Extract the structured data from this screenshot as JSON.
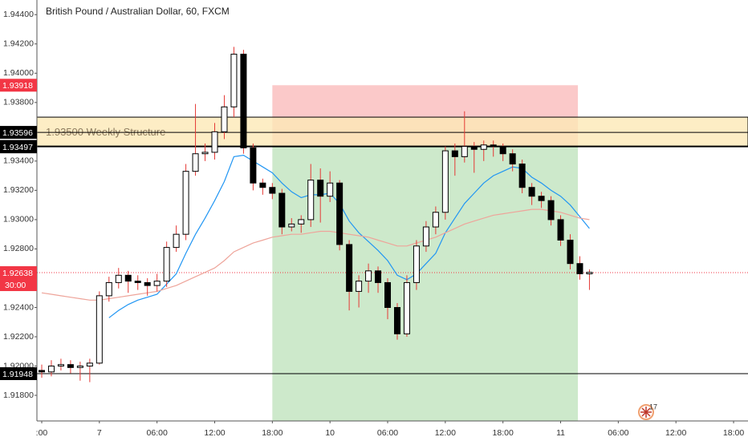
{
  "chart_data": {
    "type": "candlestick",
    "title": "British Pound / Australian Dollar, 60, FXCM",
    "badge": "17",
    "grid": false,
    "x": [
      0,
      1,
      2,
      3,
      4,
      5,
      6,
      7,
      8,
      9,
      10,
      11,
      12,
      13,
      14,
      15,
      16,
      17,
      18,
      19,
      20,
      21,
      22,
      23,
      24,
      25,
      26,
      27,
      28,
      29,
      30,
      31,
      32,
      33,
      34,
      35,
      36,
      37,
      38,
      39,
      40,
      41,
      42,
      43,
      44,
      45,
      46,
      47,
      48,
      49,
      50,
      51,
      52,
      53,
      54,
      55,
      56,
      57
    ],
    "open": [
      1.9197,
      1.9196,
      1.92,
      1.9201,
      1.9199,
      1.92,
      1.9202,
      1.9248,
      1.9257,
      1.9262,
      1.9258,
      1.9257,
      1.9255,
      1.9258,
      1.9281,
      1.929,
      1.9333,
      1.9345,
      1.9346,
      1.936,
      1.9377,
      1.9413,
      1.9349,
      1.9325,
      1.9322,
      1.9318,
      1.9295,
      1.9297,
      1.93,
      1.9327,
      1.9316,
      1.9325,
      1.9283,
      1.9251,
      1.9258,
      1.9265,
      1.9257,
      1.924,
      1.9222,
      1.9257,
      1.9282,
      1.9295,
      1.9305,
      1.9347,
      1.9343,
      1.935,
      1.9348,
      1.9351,
      1.935,
      1.9345,
      1.9338,
      1.9322,
      1.9316,
      1.9313,
      1.93,
      1.9286,
      1.927,
      1.9263
    ],
    "high": [
      1.9201,
      1.9204,
      1.9205,
      1.9204,
      1.9203,
      1.9205,
      1.9251,
      1.9261,
      1.9267,
      1.9265,
      1.9262,
      1.926,
      1.9263,
      1.9285,
      1.9296,
      1.9338,
      1.9379,
      1.9352,
      1.9366,
      1.9385,
      1.9418,
      1.9416,
      1.9352,
      1.9328,
      1.9325,
      1.9321,
      1.9301,
      1.9303,
      1.9338,
      1.9335,
      1.9333,
      1.9327,
      1.9286,
      1.9262,
      1.927,
      1.9268,
      1.926,
      1.9243,
      1.9262,
      1.9286,
      1.9299,
      1.9309,
      1.935,
      1.9352,
      1.9374,
      1.9353,
      1.9354,
      1.9354,
      1.9352,
      1.9348,
      1.9341,
      1.9325,
      1.9319,
      1.9316,
      1.9303,
      1.929,
      1.9275,
      1.9266
    ],
    "low": [
      1.9192,
      1.9193,
      1.9197,
      1.9195,
      1.919,
      1.9189,
      1.9201,
      1.9244,
      1.9253,
      1.925,
      1.9252,
      1.9248,
      1.9251,
      1.9254,
      1.9278,
      1.9286,
      1.933,
      1.934,
      1.9341,
      1.9355,
      1.937,
      1.9345,
      1.932,
      1.9317,
      1.9314,
      1.929,
      1.9292,
      1.9291,
      1.9295,
      1.9298,
      1.9312,
      1.9279,
      1.9238,
      1.924,
      1.925,
      1.925,
      1.9232,
      1.9218,
      1.922,
      1.9252,
      1.9278,
      1.929,
      1.93,
      1.933,
      1.9339,
      1.9332,
      1.934,
      1.9343,
      1.934,
      1.9333,
      1.9318,
      1.931,
      1.9308,
      1.9296,
      1.9282,
      1.9266,
      1.9259,
      1.9252
    ],
    "close": [
      1.9196,
      1.92,
      1.9201,
      1.9199,
      1.92,
      1.9202,
      1.9248,
      1.9257,
      1.9262,
      1.9258,
      1.9257,
      1.9255,
      1.9258,
      1.9281,
      1.929,
      1.9333,
      1.9345,
      1.9346,
      1.936,
      1.9377,
      1.9413,
      1.9349,
      1.9325,
      1.9322,
      1.9318,
      1.9295,
      1.9297,
      1.93,
      1.9327,
      1.9316,
      1.9325,
      1.9283,
      1.9251,
      1.9258,
      1.9265,
      1.9257,
      1.924,
      1.9222,
      1.9257,
      1.9282,
      1.9295,
      1.9305,
      1.9347,
      1.9343,
      1.935,
      1.9348,
      1.9351,
      1.935,
      1.9345,
      1.9338,
      1.9322,
      1.9316,
      1.9313,
      1.93,
      1.9286,
      1.927,
      1.9263,
      1.9264
    ],
    "up_color": "#ffffff",
    "down_color": "#000000",
    "wick_color": "#e53935",
    "series": [
      {
        "color": "#2196f3",
        "values": [
          null,
          null,
          null,
          null,
          null,
          null,
          null,
          1.9233,
          1.9238,
          1.9242,
          1.9245,
          1.9247,
          1.9249,
          1.9256,
          1.9263,
          1.9277,
          1.929,
          1.9301,
          1.9313,
          1.9326,
          1.9343,
          1.9344,
          1.934,
          1.9336,
          1.9332,
          1.9325,
          1.9319,
          1.9315,
          1.9317,
          1.9317,
          1.9318,
          1.9311,
          1.9299,
          1.9291,
          1.9285,
          1.9279,
          1.9272,
          1.9262,
          1.9259,
          1.9263,
          1.927,
          1.9277,
          1.9291,
          1.9301,
          1.9311,
          1.9318,
          1.9325,
          1.933,
          1.9333,
          1.9336,
          1.9335,
          1.9329,
          1.9325,
          1.932,
          1.9316,
          1.931,
          1.9302,
          1.9294
        ]
      },
      {
        "color": "#eea49a",
        "values": [
          1.925,
          1.9249,
          1.9248,
          1.9247,
          1.9246,
          1.9245,
          1.9245,
          1.9246,
          1.9247,
          1.9248,
          1.9249,
          1.925,
          1.9251,
          1.9253,
          1.9255,
          1.9258,
          1.9261,
          1.9264,
          1.9267,
          1.9272,
          1.9278,
          1.9281,
          1.9284,
          1.9286,
          1.9288,
          1.9289,
          1.929,
          1.929,
          1.9291,
          1.9292,
          1.9292,
          1.9291,
          1.929,
          1.9289,
          1.9288,
          1.9286,
          1.9284,
          1.9282,
          1.9282,
          1.9284,
          1.9286,
          1.9288,
          1.9291,
          1.9294,
          1.9297,
          1.9299,
          1.9301,
          1.9303,
          1.9304,
          1.9305,
          1.9306,
          1.9307,
          1.9307,
          1.9306,
          1.9305,
          1.9303,
          1.9301,
          1.93
        ]
      }
    ],
    "xlim": [
      -0.5,
      73.5
    ],
    "xticks": [
      {
        "value": 0,
        "label": ":00"
      },
      {
        "value": 6,
        "label": "7"
      },
      {
        "value": 12,
        "label": "06:00"
      },
      {
        "value": 18,
        "label": "12:00"
      },
      {
        "value": 24,
        "label": "18:00"
      },
      {
        "value": 30,
        "label": "10"
      },
      {
        "value": 36,
        "label": "06:00"
      },
      {
        "value": 42,
        "label": "12:00"
      },
      {
        "value": 48,
        "label": "18:00"
      },
      {
        "value": 54,
        "label": "11"
      },
      {
        "value": 60,
        "label": "06:00"
      },
      {
        "value": 66,
        "label": "12:00"
      },
      {
        "value": 72,
        "label": "18:00"
      }
    ],
    "ylim": [
      1.91625,
      1.945
    ],
    "yticks": [
      {
        "value": 1.918,
        "label": "1.91800"
      },
      {
        "value": 1.92,
        "label": "1.92000"
      },
      {
        "value": 1.922,
        "label": "1.92200"
      },
      {
        "value": 1.924,
        "label": "1.92400"
      },
      {
        "value": 1.926,
        "label": "1.92600"
      },
      {
        "value": 1.928,
        "label": "1.92800"
      },
      {
        "value": 1.93,
        "label": "1.93000"
      },
      {
        "value": 1.932,
        "label": "1.93200"
      },
      {
        "value": 1.934,
        "label": "1.93400"
      },
      {
        "value": 1.936,
        "label": "1.93600"
      },
      {
        "value": 1.938,
        "label": "1.93800"
      },
      {
        "value": 1.94,
        "label": "1.94000"
      },
      {
        "value": 1.942,
        "label": "1.94200"
      },
      {
        "value": 1.944,
        "label": "1.94400"
      }
    ],
    "zone": {
      "from": 1.935,
      "to": 1.937,
      "label": "1.93500 Weekly Structure",
      "color": "#fce9b6"
    },
    "position": {
      "start": 24,
      "end": 55.8,
      "entry": 1.93497,
      "stop": 1.93918,
      "target": 1.9162,
      "stop_color": "#fbc9c9",
      "target_color": "#cde9cb"
    },
    "levels": [
      {
        "value": 1.93918,
        "color": "#f23645",
        "line": false
      },
      {
        "value": 1.93596,
        "color": "#000000",
        "line": true
      },
      {
        "value": 1.935,
        "label": "1.93500",
        "color": "#000000",
        "line": true
      },
      {
        "value": 1.93497,
        "color": "#000000",
        "line": false
      },
      {
        "value": 1.91948,
        "color": "#000000",
        "line": true
      }
    ],
    "last_price": {
      "value": 1.92638,
      "countdown": "30:00",
      "color": "#f23645"
    }
  }
}
